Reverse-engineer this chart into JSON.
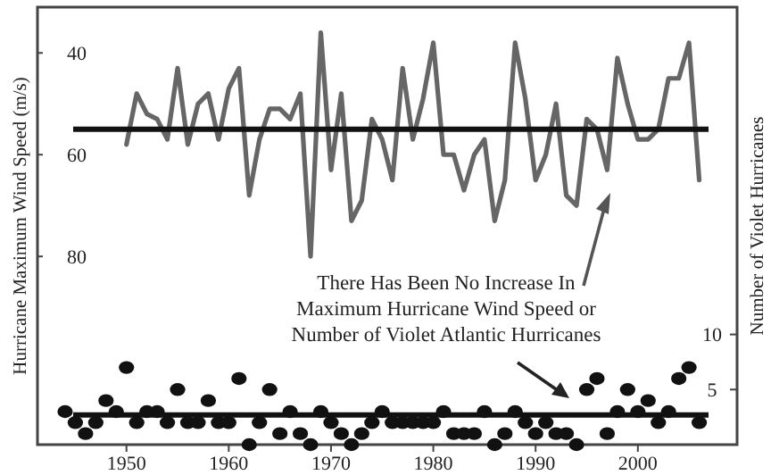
{
  "chart_data": {
    "type": "line",
    "xlim": [
      1941.3,
      2009.7
    ],
    "xticks": [
      1950,
      1960,
      1970,
      1980,
      1990,
      2000
    ],
    "ylim": [
      117,
      31
    ],
    "yticks": [
      40,
      60,
      80
    ],
    "ylabel": "Hurricane Maximum Wind Speed (m/s)",
    "y2lim": [
      0,
      39.7
    ],
    "y2ticks": [
      5,
      10
    ],
    "y2label": "Number of Violet Hurricanes",
    "series": [
      {
        "color": "#666666",
        "marker": "none",
        "x": [
          1950,
          1951,
          1952,
          1953,
          1954,
          1955,
          1956,
          1957,
          1958,
          1959,
          1960,
          1961,
          1962,
          1963,
          1964,
          1965,
          1966,
          1967,
          1968,
          1969,
          1970,
          1971,
          1972,
          1973,
          1974,
          1975,
          1976,
          1977,
          1978,
          1979,
          1980,
          1981,
          1982,
          1983,
          1984,
          1985,
          1986,
          1987,
          1988,
          1989,
          1990,
          1991,
          1992,
          1993,
          1994,
          1995,
          1996,
          1997,
          1998,
          1999,
          2000,
          2001,
          2002,
          2003,
          2004,
          2005,
          2006
        ],
        "values": [
          58,
          48,
          52,
          53,
          57,
          43,
          58,
          50,
          48,
          57,
          47,
          43,
          68,
          57,
          51,
          51,
          53,
          48,
          80,
          36,
          63,
          48,
          73,
          69,
          53,
          57,
          65,
          43,
          57,
          49,
          38,
          60,
          60,
          67,
          60,
          57,
          73,
          65,
          38,
          49,
          65,
          60,
          50,
          68,
          70,
          53,
          55,
          63,
          41,
          50,
          57,
          57,
          55,
          45,
          45,
          38,
          65
        ]
      },
      {
        "type": "scatter",
        "axis": "y2",
        "color": "#111111",
        "marker": "circle",
        "x": [
          1944,
          1945,
          1946,
          1947,
          1948,
          1949,
          1950,
          1951,
          1952,
          1953,
          1954,
          1955,
          1956,
          1957,
          1958,
          1959,
          1960,
          1961,
          1962,
          1963,
          1964,
          1965,
          1966,
          1967,
          1968,
          1969,
          1970,
          1971,
          1972,
          1973,
          1974,
          1975,
          1976,
          1977,
          1978,
          1979,
          1980,
          1981,
          1982,
          1983,
          1984,
          1985,
          1986,
          1987,
          1988,
          1989,
          1990,
          1991,
          1992,
          1993,
          1994,
          1995,
          1996,
          1997,
          1998,
          1999,
          2000,
          2001,
          2002,
          2003,
          2004,
          2005,
          2006
        ],
        "values": [
          3,
          2,
          1,
          2,
          4,
          3,
          7,
          2,
          3,
          3,
          2,
          5,
          2,
          2,
          4,
          2,
          2,
          6,
          0,
          2,
          5,
          1,
          3,
          1,
          0,
          3,
          2,
          1,
          0,
          1,
          2,
          3,
          2,
          2,
          2,
          2,
          2,
          3,
          1,
          1,
          1,
          3,
          0,
          1,
          3,
          2,
          1,
          2,
          1,
          1,
          0,
          5,
          6,
          1,
          3,
          5,
          3,
          4,
          2,
          3,
          6,
          7,
          2
        ]
      }
    ],
    "ref_lines": [
      {
        "axis": "y",
        "value": 55,
        "color": "#111111"
      },
      {
        "axis": "y2",
        "value": 2.7,
        "color": "#111111"
      }
    ],
    "annotations": [
      "There Has Been No Increase In\nMaximum Hurricane Wind Speed or\nNumber of Violet Atlantic Hurricanes"
    ]
  }
}
